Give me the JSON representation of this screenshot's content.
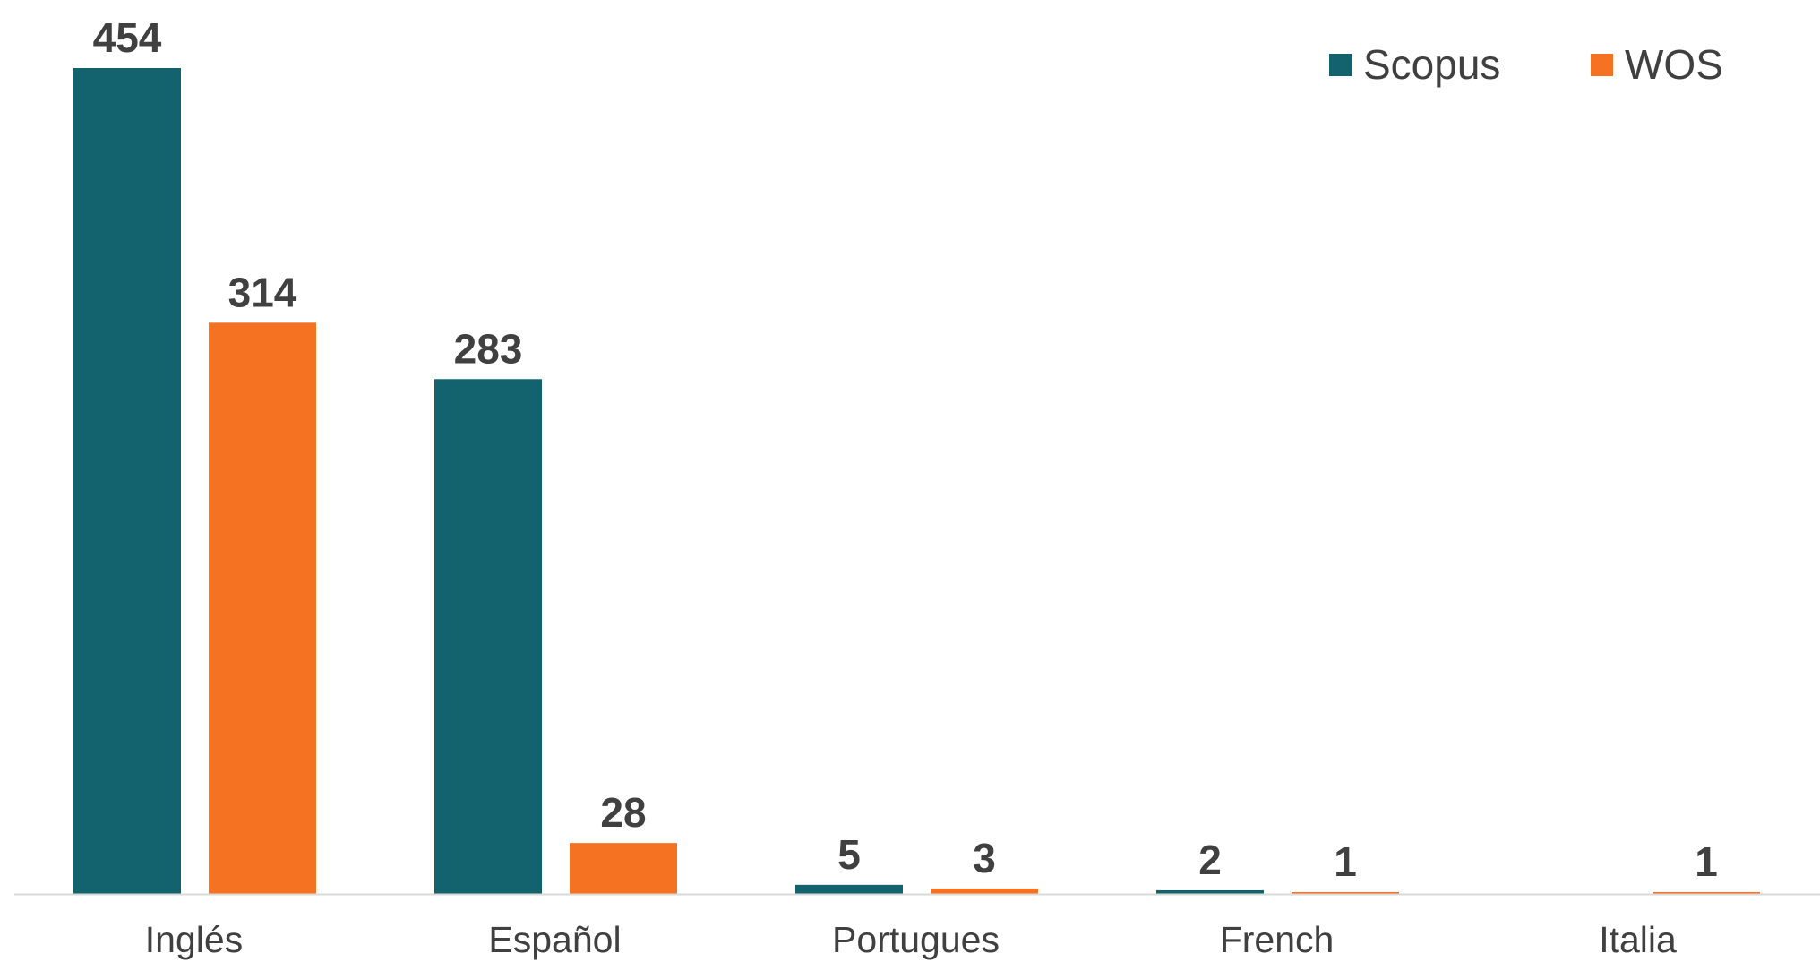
{
  "chart_data": {
    "type": "bar",
    "title": "",
    "xlabel": "",
    "ylabel": "",
    "categories": [
      "Inglés",
      "Español",
      "Portugues",
      "French",
      "Italia"
    ],
    "series": [
      {
        "name": "Scopus",
        "color": "#12636E",
        "values": [
          454,
          283,
          5,
          2,
          0
        ]
      },
      {
        "name": "WOS",
        "color": "#F47222",
        "values": [
          314,
          28,
          3,
          1,
          1
        ]
      }
    ],
    "data_labels": [
      [
        "454",
        "283",
        "5",
        "2",
        ""
      ],
      [
        "314",
        "28",
        "3",
        "1",
        "1"
      ]
    ],
    "ylim": [
      0,
      454
    ],
    "grid": false,
    "legend_position": "top-right",
    "text_color": "#404040",
    "axis_color": "#D9D9D9"
  }
}
